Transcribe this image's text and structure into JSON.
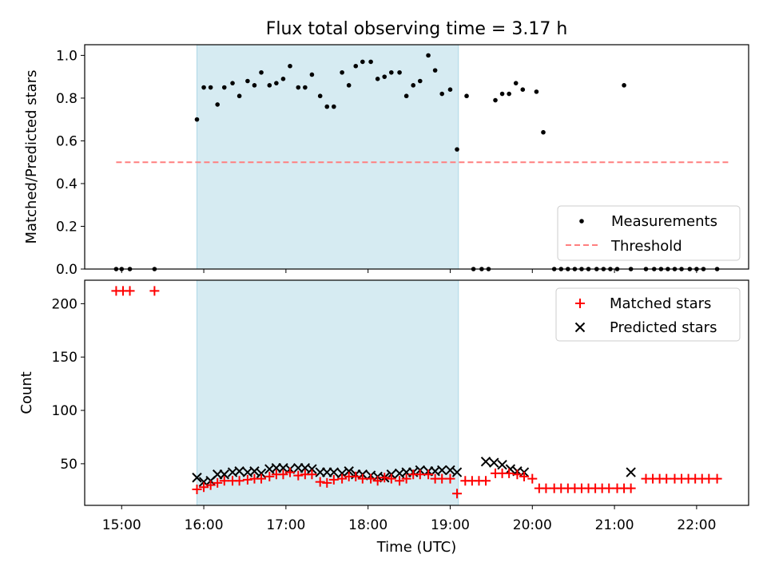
{
  "figure": {
    "title": "Flux total observing time = 3.17 h"
  },
  "colors": {
    "shade": "#add8e6",
    "measurement": "#000000",
    "threshold": "#ff7f7f",
    "matched": "#ff0000",
    "predicted": "#000000"
  },
  "chart_data": [
    {
      "type": "scatter",
      "panel": "top",
      "xlabel": "",
      "ylabel": "Matched/Predicted stars",
      "xlim": [
        "14:33",
        "22:38"
      ],
      "ylim": [
        0,
        1.05
      ],
      "yticks": [
        0.0,
        0.2,
        0.4,
        0.6,
        0.8,
        1.0
      ],
      "ytick_labels": [
        "0.0",
        "0.2",
        "0.4",
        "0.6",
        "0.8",
        "1.0"
      ],
      "grid": false,
      "legend_position": "lower-right",
      "shaded_interval": [
        "15:55",
        "19:06"
      ],
      "threshold": {
        "name": "Threshold",
        "y": 0.5,
        "x": [
          "14:56",
          "22:25"
        ]
      },
      "series": [
        {
          "name": "Measurements",
          "x": [
            "14:56",
            "15:00",
            "15:06",
            "15:24",
            "15:55",
            "16:00",
            "16:05",
            "16:10",
            "16:15",
            "16:21",
            "16:26",
            "16:32",
            "16:37",
            "16:42",
            "16:48",
            "16:53",
            "16:58",
            "17:03",
            "17:09",
            "17:14",
            "17:19",
            "17:25",
            "17:30",
            "17:35",
            "17:41",
            "17:46",
            "17:51",
            "17:56",
            "18:02",
            "18:07",
            "18:12",
            "18:17",
            "18:23",
            "18:28",
            "18:33",
            "18:38",
            "18:44",
            "18:49",
            "18:54",
            "19:00",
            "19:05",
            "19:12",
            "19:17",
            "19:23",
            "19:28",
            "19:33",
            "19:38",
            "19:43",
            "19:48",
            "19:53",
            "20:03",
            "20:08",
            "20:16",
            "20:21",
            "20:26",
            "20:31",
            "20:36",
            "20:41",
            "20:47",
            "20:52",
            "20:57",
            "21:02",
            "21:07",
            "21:12",
            "21:23",
            "21:29",
            "21:34",
            "21:39",
            "21:44",
            "21:49",
            "21:55",
            "22:00",
            "22:05",
            "22:15"
          ],
          "y": [
            0,
            0,
            0,
            0,
            0.7,
            0.85,
            0.85,
            0.77,
            0.85,
            0.87,
            0.81,
            0.88,
            0.86,
            0.92,
            0.86,
            0.87,
            0.89,
            0.95,
            0.85,
            0.85,
            0.91,
            0.81,
            0.76,
            0.76,
            0.92,
            0.86,
            0.95,
            0.97,
            0.97,
            0.89,
            0.9,
            0.92,
            0.92,
            0.81,
            0.86,
            0.88,
            1.0,
            0.93,
            0.82,
            0.84,
            0.56,
            0.81,
            0,
            0,
            0,
            0.79,
            0.82,
            0.82,
            0.87,
            0.84,
            0.83,
            0.64,
            0,
            0,
            0,
            0,
            0,
            0,
            0,
            0,
            0,
            0,
            0.86,
            0,
            0,
            0,
            0,
            0,
            0,
            0,
            0,
            0,
            0,
            0
          ]
        }
      ]
    },
    {
      "type": "scatter",
      "panel": "bottom",
      "xlabel": "Time (UTC)",
      "ylabel": "Count",
      "xlim": [
        "14:33",
        "22:38"
      ],
      "ylim": [
        11,
        222
      ],
      "xticks": [
        "15:00",
        "16:00",
        "17:00",
        "18:00",
        "19:00",
        "20:00",
        "21:00",
        "22:00"
      ],
      "yticks": [
        50,
        100,
        150,
        200
      ],
      "ytick_labels": [
        "50",
        "100",
        "150",
        "200"
      ],
      "grid": false,
      "legend_position": "top-right",
      "shaded_interval": [
        "15:55",
        "19:06"
      ],
      "series": [
        {
          "name": "Matched stars",
          "x": [
            "14:56",
            "15:01",
            "15:06",
            "15:24",
            "15:55",
            "16:00",
            "16:05",
            "16:10",
            "16:15",
            "16:21",
            "16:26",
            "16:32",
            "16:37",
            "16:42",
            "16:48",
            "16:53",
            "16:58",
            "17:03",
            "17:09",
            "17:14",
            "17:19",
            "17:25",
            "17:30",
            "17:35",
            "17:41",
            "17:46",
            "17:51",
            "17:56",
            "18:02",
            "18:07",
            "18:12",
            "18:17",
            "18:23",
            "18:28",
            "18:33",
            "18:38",
            "18:44",
            "18:49",
            "18:54",
            "19:00",
            "19:05",
            "19:11",
            "19:16",
            "19:21",
            "19:26",
            "19:33",
            "19:38",
            "19:43",
            "19:49",
            "19:54",
            "20:00",
            "20:05",
            "20:10",
            "20:16",
            "20:21",
            "20:26",
            "20:31",
            "20:36",
            "20:41",
            "20:46",
            "20:51",
            "20:56",
            "21:02",
            "21:07",
            "21:12",
            "21:23",
            "21:28",
            "21:33",
            "21:38",
            "21:44",
            "21:49",
            "21:54",
            "21:59",
            "22:04",
            "22:09",
            "22:15"
          ],
          "y": [
            212,
            212,
            212,
            212,
            26,
            28,
            30,
            32,
            34,
            34,
            34,
            35,
            36,
            36,
            38,
            40,
            40,
            42,
            39,
            40,
            40,
            33,
            32,
            35,
            36,
            38,
            38,
            36,
            36,
            34,
            37,
            36,
            34,
            36,
            40,
            40,
            40,
            36,
            36,
            36,
            22,
            34,
            34,
            34,
            34,
            41,
            41,
            41,
            40,
            38,
            36,
            27,
            27,
            27,
            27,
            27,
            27,
            27,
            27,
            27,
            27,
            27,
            27,
            27,
            27,
            36,
            36,
            36,
            36,
            36,
            36,
            36,
            36,
            36,
            36,
            36
          ]
        },
        {
          "name": "Predicted stars",
          "x": [
            "15:55",
            "16:00",
            "16:05",
            "16:10",
            "16:15",
            "16:21",
            "16:26",
            "16:32",
            "16:37",
            "16:42",
            "16:48",
            "16:53",
            "16:58",
            "17:03",
            "17:09",
            "17:14",
            "17:19",
            "17:25",
            "17:30",
            "17:35",
            "17:41",
            "17:46",
            "17:51",
            "17:56",
            "18:02",
            "18:07",
            "18:12",
            "18:17",
            "18:23",
            "18:28",
            "18:33",
            "18:38",
            "18:44",
            "18:49",
            "18:54",
            "19:00",
            "19:05",
            "19:26",
            "19:32",
            "19:38",
            "19:44",
            "19:49",
            "19:54",
            "21:12"
          ],
          "y": [
            37,
            33,
            34,
            40,
            40,
            42,
            43,
            42,
            43,
            41,
            45,
            46,
            46,
            45,
            46,
            46,
            45,
            42,
            42,
            42,
            41,
            43,
            40,
            40,
            39,
            38,
            37,
            40,
            41,
            42,
            42,
            44,
            43,
            43,
            44,
            44,
            42,
            52,
            51,
            49,
            45,
            43,
            42,
            42
          ]
        }
      ]
    }
  ]
}
